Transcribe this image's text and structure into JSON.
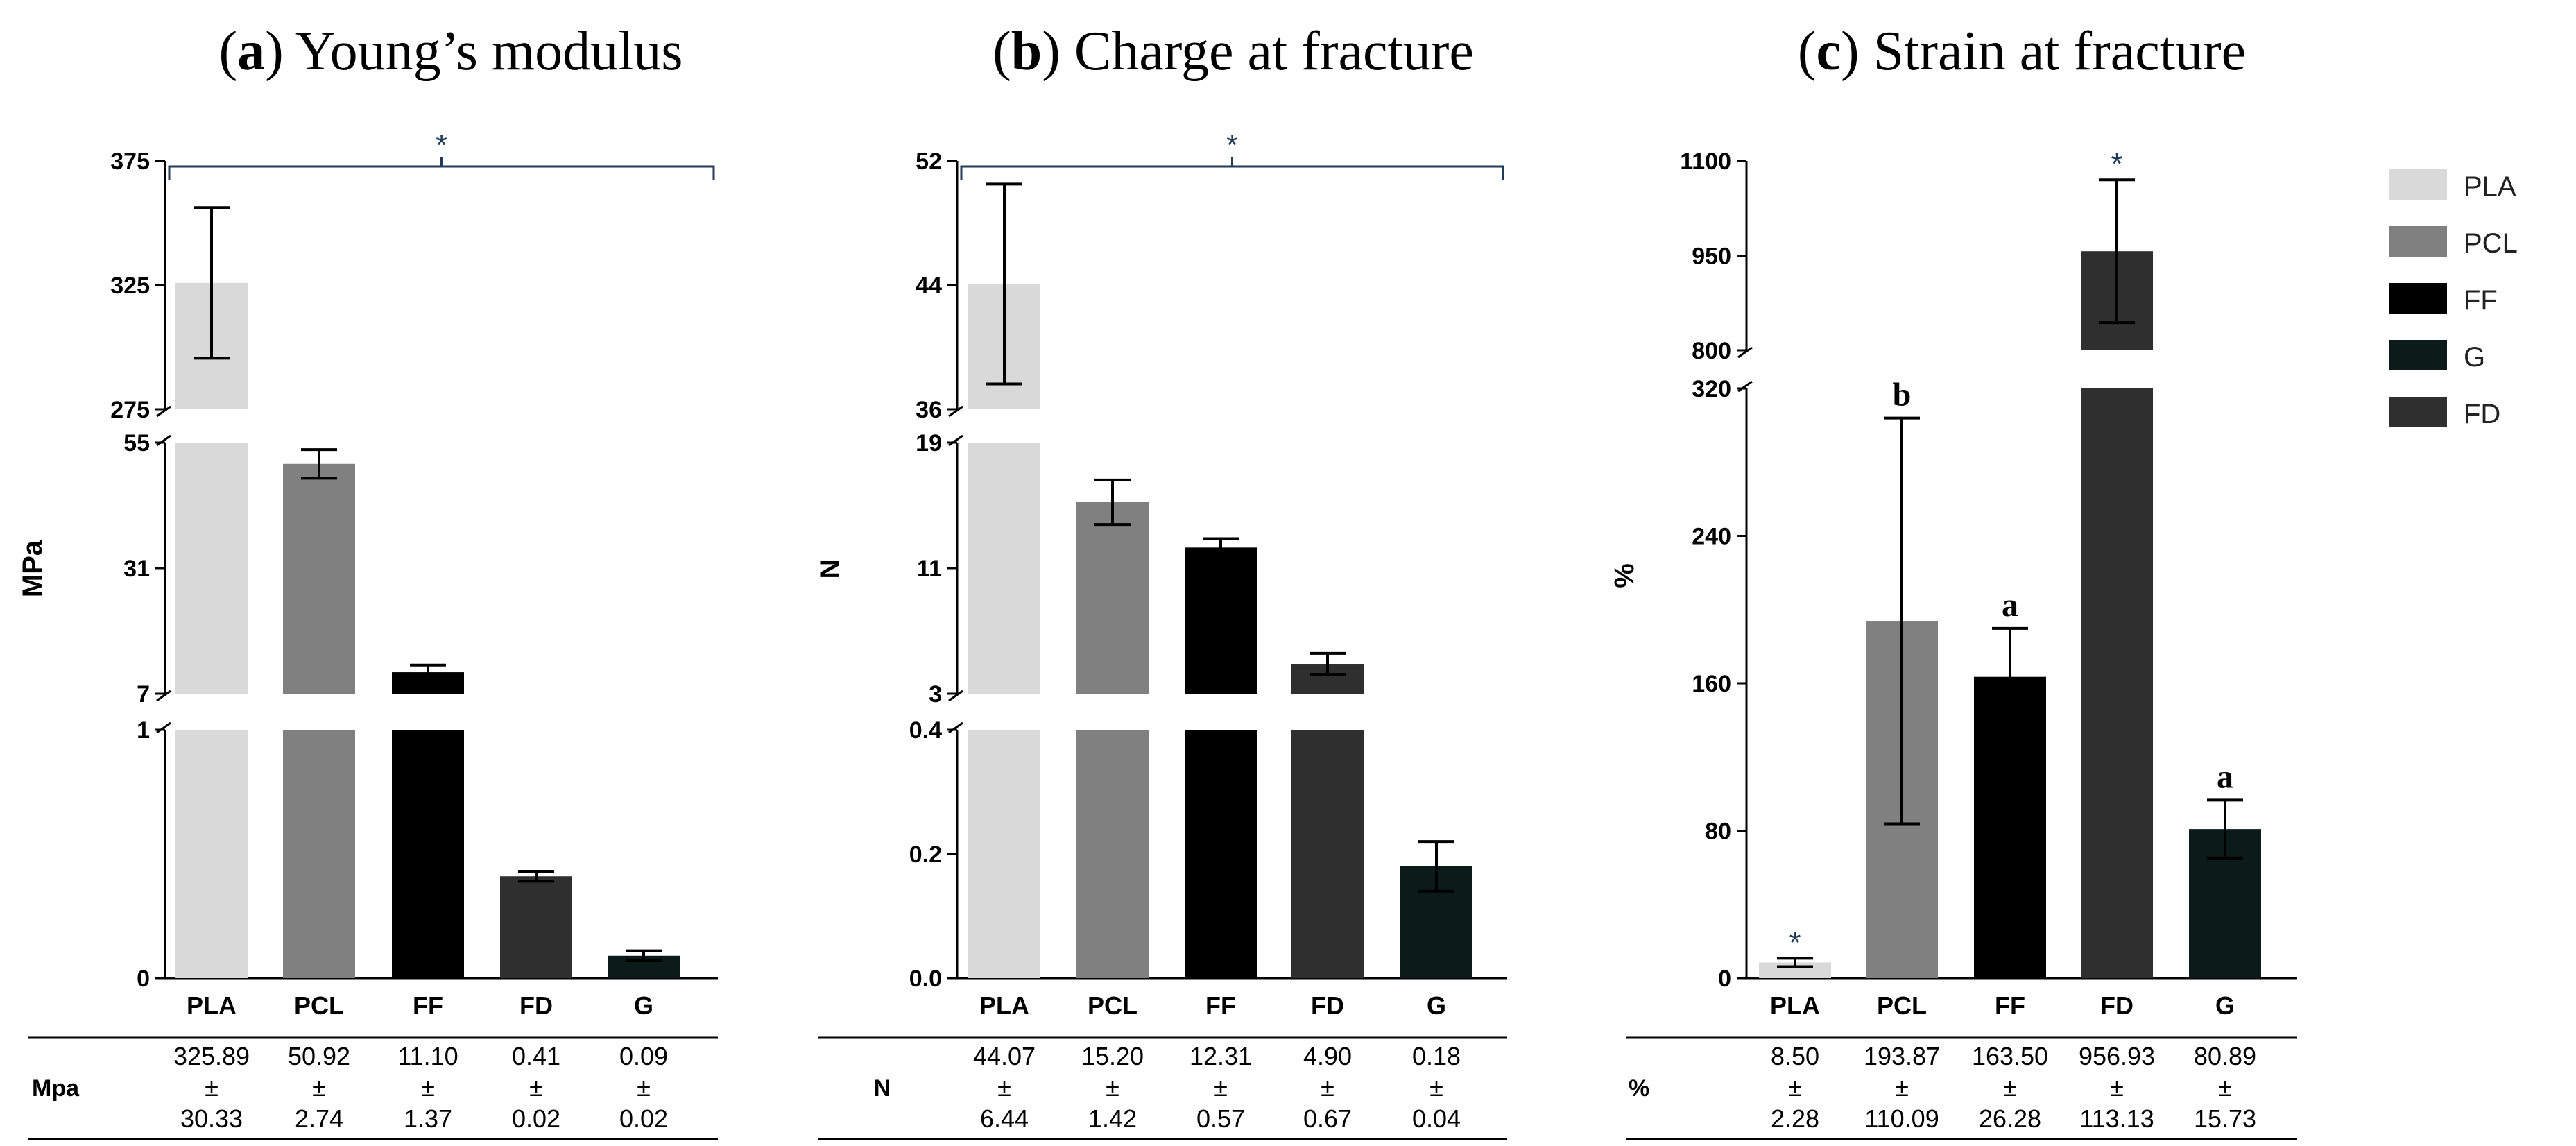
{
  "figure": {
    "colors": {
      "PLA": "#d9d9d9",
      "PCL": "#808080",
      "FF": "#000000",
      "FD": "#2f2f2f",
      "G": "#0c1a1a"
    },
    "legend": [
      "PLA",
      "PCL",
      "FF",
      "G",
      "FD"
    ]
  },
  "chart_data": [
    {
      "type": "bar",
      "panel_letter": "a",
      "title": "Young’s modulus",
      "ylabel": "MPa",
      "table_unit": "Mpa",
      "categories": [
        "PLA",
        "PCL",
        "FF",
        "FD",
        "G"
      ],
      "values": [
        325.89,
        50.92,
        11.1,
        0.41,
        0.09
      ],
      "errors": [
        30.33,
        2.74,
        1.37,
        0.02,
        0.02
      ],
      "values_text": [
        "325.89",
        "50.92",
        "11.10",
        "0.41",
        "0.09"
      ],
      "errors_text": [
        "30.33",
        "2.74",
        "1.37",
        "0.02",
        "0.02"
      ],
      "pm": "±",
      "segments": [
        {
          "range": [
            0,
            1
          ],
          "ticks": [
            "0",
            "1"
          ]
        },
        {
          "range": [
            7,
            55
          ],
          "ticks": [
            "7",
            "31",
            "55"
          ]
        },
        {
          "range": [
            275,
            375
          ],
          "ticks": [
            "275",
            "325",
            "375"
          ]
        }
      ],
      "significance_bracket": "*",
      "bar_marks": [
        "",
        "",
        "",
        "",
        ""
      ]
    },
    {
      "type": "bar",
      "panel_letter": "b",
      "title": "Charge at fracture",
      "ylabel": "N",
      "table_unit": "N",
      "categories": [
        "PLA",
        "PCL",
        "FF",
        "FD",
        "G"
      ],
      "values": [
        44.07,
        15.2,
        12.31,
        4.9,
        0.18
      ],
      "errors": [
        6.44,
        1.42,
        0.57,
        0.67,
        0.04
      ],
      "values_text": [
        "44.07",
        "15.20",
        "12.31",
        "4.90",
        "0.18"
      ],
      "errors_text": [
        "6.44",
        "1.42",
        "0.57",
        "0.67",
        "0.04"
      ],
      "pm": "±",
      "segments": [
        {
          "range": [
            0,
            0.4
          ],
          "ticks": [
            "0.0",
            "0.2",
            "0.4"
          ]
        },
        {
          "range": [
            3,
            19
          ],
          "ticks": [
            "3",
            "11",
            "19"
          ]
        },
        {
          "range": [
            36,
            52
          ],
          "ticks": [
            "36",
            "44",
            "52"
          ]
        }
      ],
      "significance_bracket": "*",
      "bar_marks": [
        "",
        "",
        "",
        "",
        ""
      ]
    },
    {
      "type": "bar",
      "panel_letter": "c",
      "title": "Strain at fracture",
      "ylabel": "%",
      "table_unit": "%",
      "categories": [
        "PLA",
        "PCL",
        "FF",
        "FD",
        "G"
      ],
      "values": [
        8.5,
        193.87,
        163.5,
        956.93,
        80.89
      ],
      "errors": [
        2.28,
        110.09,
        26.28,
        113.13,
        15.73
      ],
      "values_text": [
        "8.50",
        "193.87",
        "163.50",
        "956.93",
        "80.89"
      ],
      "errors_text": [
        "2.28",
        "110.09",
        "26.28",
        "113.13",
        "15.73"
      ],
      "pm": "±",
      "segments": [
        {
          "range": [
            0,
            320
          ],
          "ticks": [
            "0",
            "80",
            "160",
            "240",
            "320"
          ]
        },
        {
          "range": [
            800,
            1100
          ],
          "ticks": [
            "800",
            "950",
            "1100"
          ]
        }
      ],
      "significance_bracket": "",
      "bar_marks": [
        "*",
        "b",
        "a",
        "*",
        "a"
      ]
    }
  ]
}
